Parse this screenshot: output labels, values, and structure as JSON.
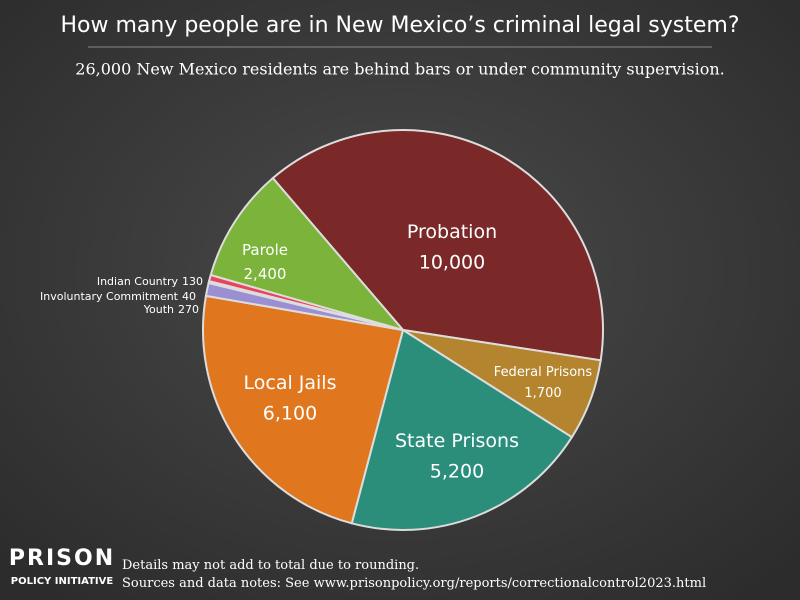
{
  "chart_data": {
    "type": "pie",
    "title": "How many people are in New Mexico’s criminal legal system?",
    "subtitle": "26,000 New Mexico residents are behind bars or under community supervision.",
    "categories": [
      "Probation",
      "Federal Prisons",
      "State Prisons",
      "Local Jails",
      "Youth",
      "Involuntary Commitment",
      "Indian Country",
      "Parole"
    ],
    "values": [
      10000,
      1700,
      5200,
      6100,
      270,
      40,
      130,
      2400
    ],
    "value_labels": [
      "10,000",
      "1,700",
      "5,200",
      "6,100",
      "270",
      "40",
      "130",
      "2,400"
    ],
    "colors": [
      "#7a2828",
      "#b4852e",
      "#2a8e7b",
      "#e0771f",
      "#9a8fd2",
      "#c83a6a",
      "#e8445c",
      "#7cb33a"
    ]
  },
  "footer": {
    "logo_top": "PRISON",
    "logo_bottom": "POLICY INITIATIVE",
    "notes": [
      "Details may not add to total due to rounding.",
      "Sources and data notes: See www.prisonpolicy.org/reports/correctionalcontrol2023.html"
    ]
  }
}
